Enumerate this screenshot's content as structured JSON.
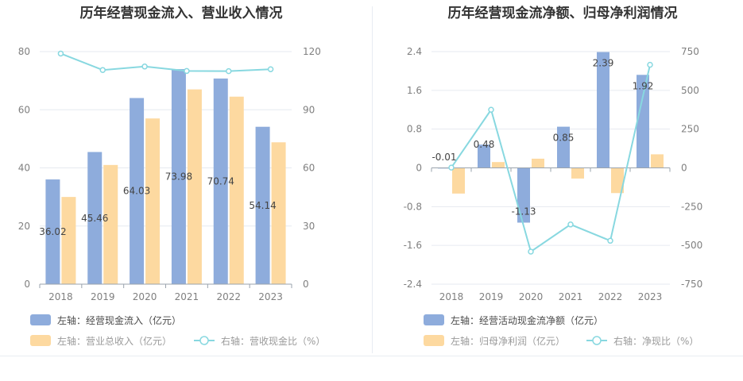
{
  "chart_data": [
    {
      "type": "bar",
      "title": "历年经营现金流入、营业收入情况",
      "categories": [
        "2018",
        "2019",
        "2020",
        "2021",
        "2022",
        "2023"
      ],
      "left_axis": {
        "ticks": [
          "0",
          "20",
          "40",
          "60",
          "80"
        ],
        "ylim": [
          0,
          80
        ]
      },
      "right_axis": {
        "ticks": [
          "0",
          "30",
          "60",
          "90",
          "120"
        ],
        "ylim": [
          0,
          120
        ]
      },
      "series": [
        {
          "name": "左轴：经营现金流入（亿元）",
          "type": "bar",
          "axis": "left",
          "color": "#8eacdc",
          "values": [
            36.02,
            45.46,
            64.03,
            73.98,
            70.74,
            54.14
          ],
          "labels": [
            "36.02",
            "45.46",
            "64.03",
            "73.98",
            "70.74",
            "54.14"
          ]
        },
        {
          "name": "左轴：营业总收入（亿元）",
          "type": "bar",
          "axis": "left",
          "color": "#fdd9a0",
          "values": [
            30.0,
            41.0,
            57.0,
            67.0,
            64.5,
            48.8
          ]
        },
        {
          "name": "右轴：营收现金比（%）",
          "type": "line",
          "axis": "right",
          "color": "#88d8e0",
          "values": [
            119.0,
            110.5,
            112.3,
            110.0,
            109.9,
            110.9
          ]
        }
      ],
      "grid": true,
      "legend_position": "bottom-left"
    },
    {
      "type": "bar",
      "title": "历年经营现金流净额、归母净利润情况",
      "categories": [
        "2018",
        "2019",
        "2020",
        "2021",
        "2022",
        "2023"
      ],
      "left_axis": {
        "ticks": [
          "-2.4",
          "-1.6",
          "-0.8",
          "0",
          "0.8",
          "1.6",
          "2.4"
        ],
        "ylim": [
          -2.4,
          2.4
        ]
      },
      "right_axis": {
        "ticks": [
          "-750",
          "-500",
          "-250",
          "0",
          "250",
          "500",
          "750"
        ],
        "ylim": [
          -750,
          750
        ]
      },
      "series": [
        {
          "name": "左轴：经营活动现金流净额（亿元）",
          "type": "bar",
          "axis": "left",
          "color": "#8eacdc",
          "values": [
            -0.01,
            0.48,
            -1.13,
            0.85,
            2.39,
            1.92
          ],
          "labels": [
            "-0.01",
            "0.48",
            "-1.13",
            "0.85",
            "2.39",
            "1.92"
          ]
        },
        {
          "name": "左轴：归母净利润（亿元）",
          "type": "bar",
          "axis": "left",
          "color": "#fdd9a0",
          "values": [
            -0.53,
            0.12,
            0.19,
            -0.22,
            -0.52,
            0.28
          ]
        },
        {
          "name": "右轴：净现比（%）",
          "type": "line",
          "axis": "right",
          "color": "#88d8e0",
          "values": [
            2,
            375,
            -540,
            -365,
            -470,
            665
          ]
        }
      ],
      "grid": true,
      "legend_position": "bottom-left"
    }
  ]
}
